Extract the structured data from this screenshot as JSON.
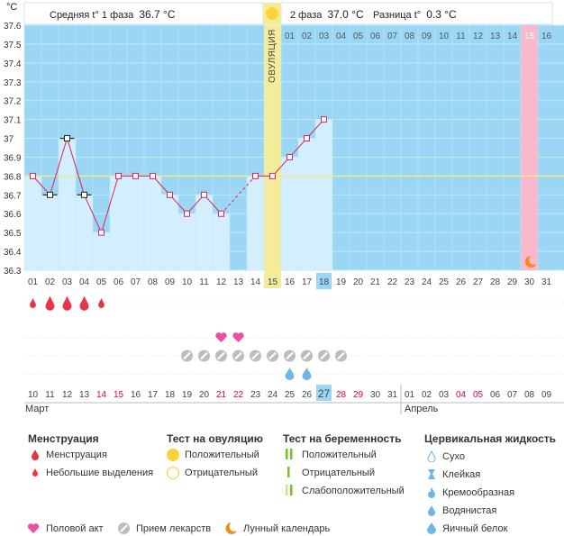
{
  "header": {
    "unit": "°C",
    "phase1_label": "Средняя t° 1 фаза",
    "phase1_value": "36.7 °C",
    "phase2_label": "2 фаза",
    "phase2_value": "37.0 °C",
    "diff_label": "Разница t°",
    "diff_value": "0.3 °C",
    "ovulation_label": "ОВУЛЯЦИЯ"
  },
  "chart_data": {
    "type": "line",
    "y_ticks": [
      "36.3",
      "36.4",
      "36.5",
      "36.6",
      "36.7",
      "36.8",
      "36.9",
      "37",
      "37.1",
      "37.2",
      "37.3",
      "37.4",
      "37.5",
      "37.6"
    ],
    "ylim": [
      36.3,
      37.6
    ],
    "cycle_days": [
      "01",
      "02",
      "03",
      "04",
      "05",
      "06",
      "07",
      "08",
      "09",
      "10",
      "11",
      "12",
      "13",
      "14",
      "15",
      "16",
      "17",
      "18",
      "19",
      "20",
      "21",
      "22",
      "23",
      "24",
      "25",
      "26",
      "27",
      "28",
      "29",
      "30",
      "31"
    ],
    "top_days": [
      "01",
      "02",
      "03",
      "04",
      "05",
      "06",
      "07",
      "08",
      "09",
      "10",
      "11",
      "12",
      "13",
      "14",
      "15",
      "16"
    ],
    "current_cycle_day": "18",
    "temperatures": [
      36.8,
      36.7,
      37.0,
      36.7,
      36.5,
      36.8,
      36.8,
      36.8,
      36.7,
      36.6,
      36.7,
      36.6,
      null,
      36.8,
      36.8,
      36.9,
      37.0,
      37.1
    ],
    "coverline": 36.8,
    "ovulation_day": 15,
    "next_period_day": 30,
    "calendar_dates": [
      "10",
      "11",
      "12",
      "13",
      "14",
      "15",
      "16",
      "17",
      "18",
      "19",
      "20",
      "21",
      "22",
      "23",
      "24",
      "25",
      "26",
      "27",
      "28",
      "29",
      "30",
      "31",
      "01",
      "02",
      "03",
      "04",
      "05",
      "06",
      "07",
      "08",
      "09"
    ],
    "weekend_indexes": [
      4,
      5,
      11,
      12,
      18,
      19,
      25,
      26
    ],
    "today_index": 17,
    "month1": "Март",
    "month2": "Апрель"
  },
  "markers": {
    "menstruation_days": [
      1,
      2,
      3,
      4,
      5
    ],
    "menstruation_heavy_days": [
      2,
      3,
      4
    ],
    "intercourse_days": [
      12,
      13
    ],
    "medication_days": [
      10,
      11,
      12,
      13,
      14,
      15,
      16,
      17,
      18,
      19
    ],
    "fluid_days": [
      16,
      17
    ]
  },
  "colors": {
    "sky": "#9bd7f5",
    "bar": "#d3eefc",
    "line": "#d7255e",
    "coverline": "#f0e88a",
    "ovulation": "#f5ec9a",
    "period": "#f9b8cc",
    "grid": "#c0e8fb",
    "blood": "#e73449",
    "heart": "#f04ea4",
    "pill": "#bdbdbd",
    "drop": "#6fb6e6",
    "sun": "#fdd33b",
    "moon": "#f38b16",
    "weekend": "#e0004d"
  },
  "legend": {
    "menstruation": {
      "title": "Менструация",
      "items": [
        "Менструация",
        "Небольшие выделения"
      ]
    },
    "ovulation_test": {
      "title": "Тест на овуляцию",
      "items": [
        "Положительный",
        "Отрицательный"
      ]
    },
    "pregnancy_test": {
      "title": "Тест на беременность",
      "items": [
        "Положительный",
        "Отрицательный",
        "Слабоположительный"
      ]
    },
    "cervical_fluid": {
      "title": "Цервикальная жидкость",
      "items": [
        "Сухо",
        "Клейкая",
        "Кремообразная",
        "Водянистая",
        "Яичный белок"
      ]
    },
    "bottom": [
      "Половой акт",
      "Прием лекарств",
      "Лунный календарь"
    ]
  }
}
